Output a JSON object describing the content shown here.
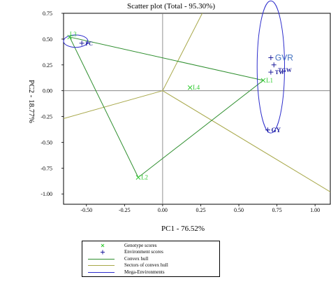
{
  "chart_data": {
    "type": "scatter",
    "title": "Scatter plot (Total - 95.30%)",
    "xlabel": "PC1 - 76.52%",
    "ylabel": "PC2 - 18.77%",
    "xlim": [
      -0.65,
      1.1
    ],
    "ylim": [
      -1.1,
      0.75
    ],
    "x_ticks": [
      "-0.50",
      "-0.25",
      "0.00",
      "0.25",
      "0.50",
      "0.75",
      "1.00"
    ],
    "x_tick_values": [
      -0.5,
      -0.25,
      0.0,
      0.25,
      0.5,
      0.75,
      1.0
    ],
    "y_ticks": [
      "0.75",
      "0.50",
      "0.25",
      "0.00",
      "-0.25",
      "-0.50",
      "-0.75",
      "-1.00"
    ],
    "y_tick_values": [
      0.75,
      0.5,
      0.25,
      0.0,
      -0.25,
      -0.5,
      -0.75,
      -1.0
    ],
    "genotypes": [
      {
        "name": "L3",
        "x": -0.61,
        "y": 0.52
      },
      {
        "name": "L1",
        "x": 0.66,
        "y": 0.1
      },
      {
        "name": "L4",
        "x": 0.18,
        "y": 0.03
      },
      {
        "name": "L2",
        "x": -0.16,
        "y": -0.84
      }
    ],
    "environments": [
      {
        "name": "PC",
        "x": -0.53,
        "y": 0.46
      },
      {
        "name": "GVR",
        "x": 0.71,
        "y": 0.32
      },
      {
        "name": "TGW",
        "x": 0.73,
        "y": 0.25
      },
      {
        "name": "TW",
        "x": 0.71,
        "y": 0.18
      },
      {
        "name": "GY",
        "x": 0.69,
        "y": -0.38
      }
    ],
    "convex_hull": [
      [
        -0.61,
        0.52
      ],
      [
        0.66,
        0.1
      ],
      [
        -0.16,
        -0.84
      ],
      [
        -0.61,
        0.52
      ]
    ],
    "sectors": [
      [
        [
          0,
          0
        ],
        [
          0.26,
          0.75
        ]
      ],
      [
        [
          0,
          0
        ],
        [
          1.1,
          -0.98
        ]
      ],
      [
        [
          0,
          0
        ],
        [
          -0.65,
          -0.27
        ]
      ]
    ],
    "mega_environments": [
      {
        "cx": 0.71,
        "cy": 0.23,
        "rx": 0.09,
        "ry": 0.64
      },
      {
        "cx": -0.57,
        "cy": 0.48,
        "rx": 0.08,
        "ry": 0.06
      }
    ],
    "legend": [
      {
        "label": "Genotype scores",
        "kind": "genotype"
      },
      {
        "label": "Environment scores",
        "kind": "environment"
      },
      {
        "label": "Convex hull",
        "kind": "hull"
      },
      {
        "label": "Sectors of convex hull",
        "kind": "sector"
      },
      {
        "label": "Mega-Environments",
        "kind": "mega"
      }
    ],
    "colors": {
      "genotype": "#33cc33",
      "environment": "#1c1c9c",
      "hull": "#2f8f2f",
      "sector": "#a8a84a",
      "mega": "#2d2dcc",
      "gvr_label": "#3f6fbf"
    }
  }
}
